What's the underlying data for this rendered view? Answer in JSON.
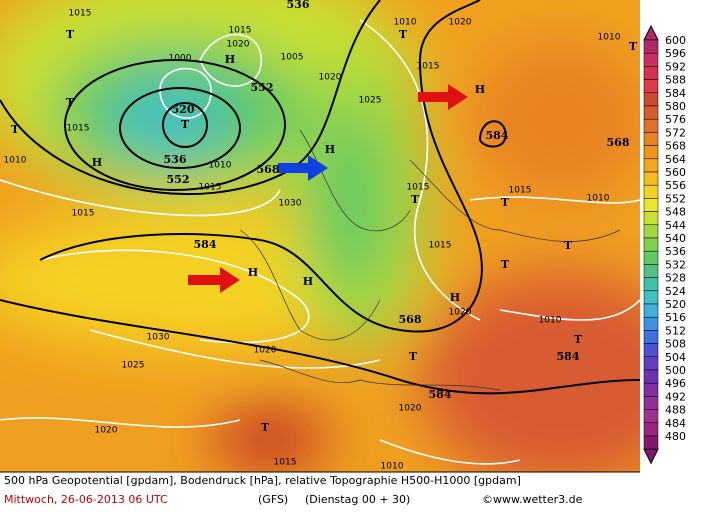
{
  "map": {
    "labels": [
      "T",
      520,
      536,
      552,
      552,
      568,
      "H",
      "H",
      "H",
      584,
      568,
      584,
      584,
      584,
      568,
      "H",
      "H",
      "T",
      "T",
      "T",
      "H",
      "T",
      "T",
      "T",
      "T",
      "T",
      "T",
      "T",
      "T",
      "H",
      1030,
      1030,
      1025,
      1020,
      1020,
      1020,
      1015,
      1010,
      1015,
      1010,
      1010,
      1015,
      1010,
      1015,
      1010,
      1020,
      1025,
      1020,
      1010,
      1015,
      1015,
      1020,
      1020,
      1005,
      1000,
      1015,
      1015,
      536,
      1015,
      1010,
      "T",
      1015
    ]
  },
  "colorbar": {
    "levels": [
      600,
      596,
      592,
      588,
      584,
      580,
      576,
      572,
      568,
      564,
      560,
      556,
      552,
      548,
      544,
      540,
      536,
      532,
      528,
      524,
      520,
      516,
      512,
      508,
      504,
      500,
      496,
      492,
      488,
      484,
      480
    ],
    "colors": [
      "#b02868",
      "#c83060",
      "#d83050",
      "#e03848",
      "#cc4a30",
      "#d85c30",
      "#e07028",
      "#e88224",
      "#f09420",
      "#f4a620",
      "#f4bc20",
      "#f4d224",
      "#ece428",
      "#c8e030",
      "#a4d840",
      "#80d050",
      "#60c864",
      "#50c084",
      "#40c0a4",
      "#40c0c4",
      "#40b0dc",
      "#4090e0",
      "#4070e0",
      "#5050d0",
      "#6040c0",
      "#7030b0",
      "#8030a4",
      "#903098",
      "#a03090",
      "#9c2480",
      "#801870"
    ]
  },
  "footer": {
    "line1": "500 hPa Geopotential [gpdam], Bodendruck [hPa], relative Topographie H500-H1000 [gpdam]",
    "date": "Mittwoch, 26-06-2013  06 UTC",
    "model": "(GFS)",
    "run": "(Dienstag 00 + 30)",
    "credit": "©www.wetter3.de"
  }
}
